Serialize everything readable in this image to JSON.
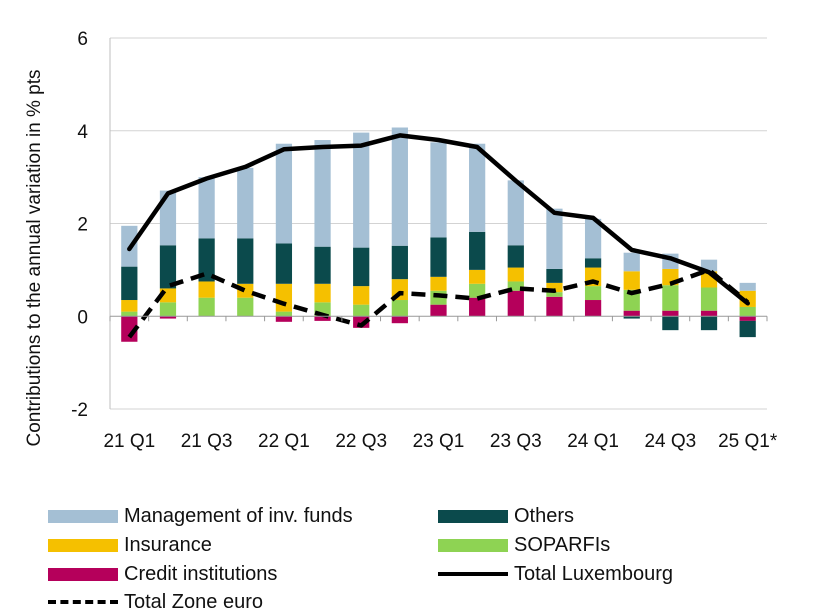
{
  "chart_data": {
    "type": "bar",
    "stacked": true,
    "ylabel": "Contributions to the annual variation in % pts",
    "ylim": [
      -2,
      6
    ],
    "yticks": [
      -2,
      0,
      2,
      4,
      6
    ],
    "categories": [
      "21 Q1",
      "21 Q2",
      "21 Q3",
      "21 Q4",
      "22 Q1",
      "22 Q2",
      "22 Q3",
      "22 Q4",
      "23 Q1",
      "23 Q2",
      "23 Q3",
      "23 Q4",
      "24 Q1",
      "24 Q2",
      "24 Q3",
      "24 Q4",
      "25 Q1*"
    ],
    "xtick_labels": [
      "21 Q1",
      "21 Q3",
      "22 Q1",
      "22 Q3",
      "23 Q1",
      "23 Q3",
      "24 Q1",
      "24 Q3",
      "25 Q1*"
    ],
    "grid": "horizontal",
    "legend_position": "bottom",
    "series": [
      {
        "name": "Credit institutions",
        "kind": "bar",
        "color": "#b5005b",
        "values": [
          -0.55,
          -0.05,
          0.0,
          0.0,
          -0.12,
          -0.1,
          -0.25,
          -0.15,
          0.25,
          0.4,
          0.55,
          0.42,
          0.35,
          0.12,
          0.12,
          0.12,
          -0.1
        ]
      },
      {
        "name": "SOPARFIs",
        "kind": "bar",
        "color": "#8ed353",
        "values": [
          0.1,
          0.3,
          0.4,
          0.4,
          0.1,
          0.3,
          0.25,
          0.35,
          0.3,
          0.3,
          0.2,
          0.1,
          0.3,
          0.45,
          0.55,
          0.5,
          0.2
        ]
      },
      {
        "name": "Insurance",
        "kind": "bar",
        "color": "#f5c000",
        "values": [
          0.25,
          0.3,
          0.35,
          0.3,
          0.6,
          0.4,
          0.4,
          0.45,
          0.3,
          0.3,
          0.3,
          0.2,
          0.4,
          0.4,
          0.35,
          0.35,
          0.35
        ]
      },
      {
        "name": "Others",
        "kind": "bar",
        "color": "#0b4a4c",
        "values": [
          0.72,
          0.93,
          0.93,
          0.98,
          0.87,
          0.8,
          0.83,
          0.72,
          0.85,
          0.82,
          0.48,
          0.3,
          0.2,
          -0.05,
          -0.3,
          -0.3,
          -0.35
        ]
      },
      {
        "name": "Management of inv. funds",
        "kind": "bar",
        "color": "#a4bfd4",
        "values": [
          0.88,
          1.18,
          1.32,
          1.52,
          2.15,
          2.3,
          2.48,
          2.55,
          2.05,
          1.9,
          1.4,
          1.3,
          0.85,
          0.4,
          0.33,
          0.25,
          0.17
        ]
      },
      {
        "name": "Total Luxembourg",
        "kind": "line",
        "color": "#000000",
        "dash": false,
        "values": [
          1.45,
          2.65,
          2.97,
          3.22,
          3.6,
          3.65,
          3.68,
          3.9,
          3.8,
          3.65,
          2.92,
          2.23,
          2.12,
          1.43,
          1.25,
          0.95,
          0.28
        ]
      },
      {
        "name": "Total Zone euro",
        "kind": "line",
        "color": "#000000",
        "dash": true,
        "values": [
          -0.45,
          0.65,
          0.92,
          0.55,
          0.27,
          0.03,
          -0.2,
          0.5,
          0.45,
          0.38,
          0.6,
          0.55,
          0.75,
          0.5,
          0.7,
          1.0,
          0.3
        ]
      }
    ]
  },
  "legend": {
    "items": [
      {
        "label": "Management of inv. funds",
        "color": "#a4bfd4",
        "kind": "swatch"
      },
      {
        "label": "Others",
        "color": "#0b4a4c",
        "kind": "swatch"
      },
      {
        "label": "Insurance",
        "color": "#f5c000",
        "kind": "swatch"
      },
      {
        "label": "SOPARFIs",
        "color": "#8ed353",
        "kind": "swatch"
      },
      {
        "label": "Credit institutions",
        "color": "#b5005b",
        "kind": "swatch"
      },
      {
        "label": "Total Luxembourg",
        "color": "#000000",
        "kind": "line"
      },
      {
        "label": "Total Zone euro",
        "color": "#000000",
        "kind": "dash"
      }
    ]
  }
}
